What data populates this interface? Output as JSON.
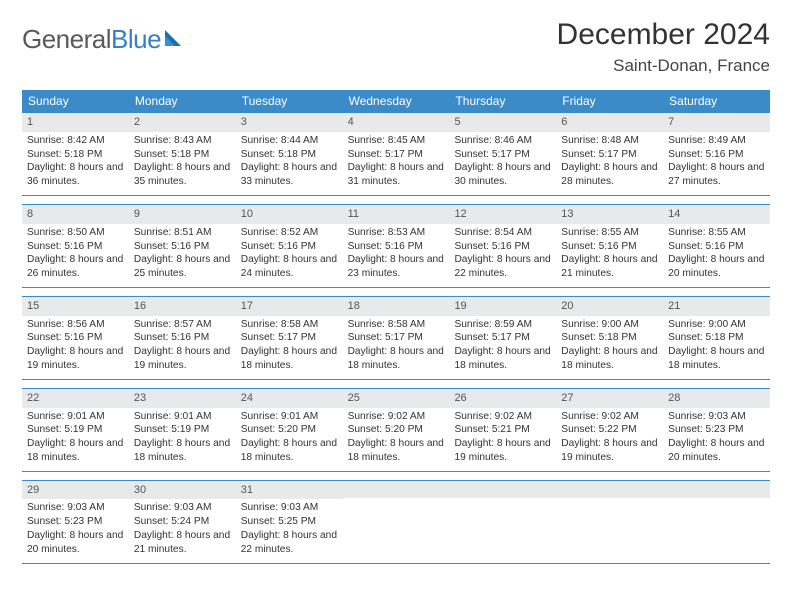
{
  "logo": {
    "word1": "General",
    "word2": "Blue"
  },
  "title": "December 2024",
  "location": "Saint-Donan, France",
  "colors": {
    "header_bg": "#3b8bc9",
    "daynum_bg": "#e7e9eb",
    "rule": "#3b8bc9",
    "logo_gray": "#5a5a5a",
    "logo_blue": "#3a7fc4"
  },
  "weekdays": [
    "Sunday",
    "Monday",
    "Tuesday",
    "Wednesday",
    "Thursday",
    "Friday",
    "Saturday"
  ],
  "weeks": [
    [
      {
        "n": "1",
        "sunrise": "Sunrise: 8:42 AM",
        "sunset": "Sunset: 5:18 PM",
        "day": "Daylight: 8 hours and 36 minutes."
      },
      {
        "n": "2",
        "sunrise": "Sunrise: 8:43 AM",
        "sunset": "Sunset: 5:18 PM",
        "day": "Daylight: 8 hours and 35 minutes."
      },
      {
        "n": "3",
        "sunrise": "Sunrise: 8:44 AM",
        "sunset": "Sunset: 5:18 PM",
        "day": "Daylight: 8 hours and 33 minutes."
      },
      {
        "n": "4",
        "sunrise": "Sunrise: 8:45 AM",
        "sunset": "Sunset: 5:17 PM",
        "day": "Daylight: 8 hours and 31 minutes."
      },
      {
        "n": "5",
        "sunrise": "Sunrise: 8:46 AM",
        "sunset": "Sunset: 5:17 PM",
        "day": "Daylight: 8 hours and 30 minutes."
      },
      {
        "n": "6",
        "sunrise": "Sunrise: 8:48 AM",
        "sunset": "Sunset: 5:17 PM",
        "day": "Daylight: 8 hours and 28 minutes."
      },
      {
        "n": "7",
        "sunrise": "Sunrise: 8:49 AM",
        "sunset": "Sunset: 5:16 PM",
        "day": "Daylight: 8 hours and 27 minutes."
      }
    ],
    [
      {
        "n": "8",
        "sunrise": "Sunrise: 8:50 AM",
        "sunset": "Sunset: 5:16 PM",
        "day": "Daylight: 8 hours and 26 minutes."
      },
      {
        "n": "9",
        "sunrise": "Sunrise: 8:51 AM",
        "sunset": "Sunset: 5:16 PM",
        "day": "Daylight: 8 hours and 25 minutes."
      },
      {
        "n": "10",
        "sunrise": "Sunrise: 8:52 AM",
        "sunset": "Sunset: 5:16 PM",
        "day": "Daylight: 8 hours and 24 minutes."
      },
      {
        "n": "11",
        "sunrise": "Sunrise: 8:53 AM",
        "sunset": "Sunset: 5:16 PM",
        "day": "Daylight: 8 hours and 23 minutes."
      },
      {
        "n": "12",
        "sunrise": "Sunrise: 8:54 AM",
        "sunset": "Sunset: 5:16 PM",
        "day": "Daylight: 8 hours and 22 minutes."
      },
      {
        "n": "13",
        "sunrise": "Sunrise: 8:55 AM",
        "sunset": "Sunset: 5:16 PM",
        "day": "Daylight: 8 hours and 21 minutes."
      },
      {
        "n": "14",
        "sunrise": "Sunrise: 8:55 AM",
        "sunset": "Sunset: 5:16 PM",
        "day": "Daylight: 8 hours and 20 minutes."
      }
    ],
    [
      {
        "n": "15",
        "sunrise": "Sunrise: 8:56 AM",
        "sunset": "Sunset: 5:16 PM",
        "day": "Daylight: 8 hours and 19 minutes."
      },
      {
        "n": "16",
        "sunrise": "Sunrise: 8:57 AM",
        "sunset": "Sunset: 5:16 PM",
        "day": "Daylight: 8 hours and 19 minutes."
      },
      {
        "n": "17",
        "sunrise": "Sunrise: 8:58 AM",
        "sunset": "Sunset: 5:17 PM",
        "day": "Daylight: 8 hours and 18 minutes."
      },
      {
        "n": "18",
        "sunrise": "Sunrise: 8:58 AM",
        "sunset": "Sunset: 5:17 PM",
        "day": "Daylight: 8 hours and 18 minutes."
      },
      {
        "n": "19",
        "sunrise": "Sunrise: 8:59 AM",
        "sunset": "Sunset: 5:17 PM",
        "day": "Daylight: 8 hours and 18 minutes."
      },
      {
        "n": "20",
        "sunrise": "Sunrise: 9:00 AM",
        "sunset": "Sunset: 5:18 PM",
        "day": "Daylight: 8 hours and 18 minutes."
      },
      {
        "n": "21",
        "sunrise": "Sunrise: 9:00 AM",
        "sunset": "Sunset: 5:18 PM",
        "day": "Daylight: 8 hours and 18 minutes."
      }
    ],
    [
      {
        "n": "22",
        "sunrise": "Sunrise: 9:01 AM",
        "sunset": "Sunset: 5:19 PM",
        "day": "Daylight: 8 hours and 18 minutes."
      },
      {
        "n": "23",
        "sunrise": "Sunrise: 9:01 AM",
        "sunset": "Sunset: 5:19 PM",
        "day": "Daylight: 8 hours and 18 minutes."
      },
      {
        "n": "24",
        "sunrise": "Sunrise: 9:01 AM",
        "sunset": "Sunset: 5:20 PM",
        "day": "Daylight: 8 hours and 18 minutes."
      },
      {
        "n": "25",
        "sunrise": "Sunrise: 9:02 AM",
        "sunset": "Sunset: 5:20 PM",
        "day": "Daylight: 8 hours and 18 minutes."
      },
      {
        "n": "26",
        "sunrise": "Sunrise: 9:02 AM",
        "sunset": "Sunset: 5:21 PM",
        "day": "Daylight: 8 hours and 19 minutes."
      },
      {
        "n": "27",
        "sunrise": "Sunrise: 9:02 AM",
        "sunset": "Sunset: 5:22 PM",
        "day": "Daylight: 8 hours and 19 minutes."
      },
      {
        "n": "28",
        "sunrise": "Sunrise: 9:03 AM",
        "sunset": "Sunset: 5:23 PM",
        "day": "Daylight: 8 hours and 20 minutes."
      }
    ],
    [
      {
        "n": "29",
        "sunrise": "Sunrise: 9:03 AM",
        "sunset": "Sunset: 5:23 PM",
        "day": "Daylight: 8 hours and 20 minutes."
      },
      {
        "n": "30",
        "sunrise": "Sunrise: 9:03 AM",
        "sunset": "Sunset: 5:24 PM",
        "day": "Daylight: 8 hours and 21 minutes."
      },
      {
        "n": "31",
        "sunrise": "Sunrise: 9:03 AM",
        "sunset": "Sunset: 5:25 PM",
        "day": "Daylight: 8 hours and 22 minutes."
      },
      null,
      null,
      null,
      null
    ]
  ]
}
